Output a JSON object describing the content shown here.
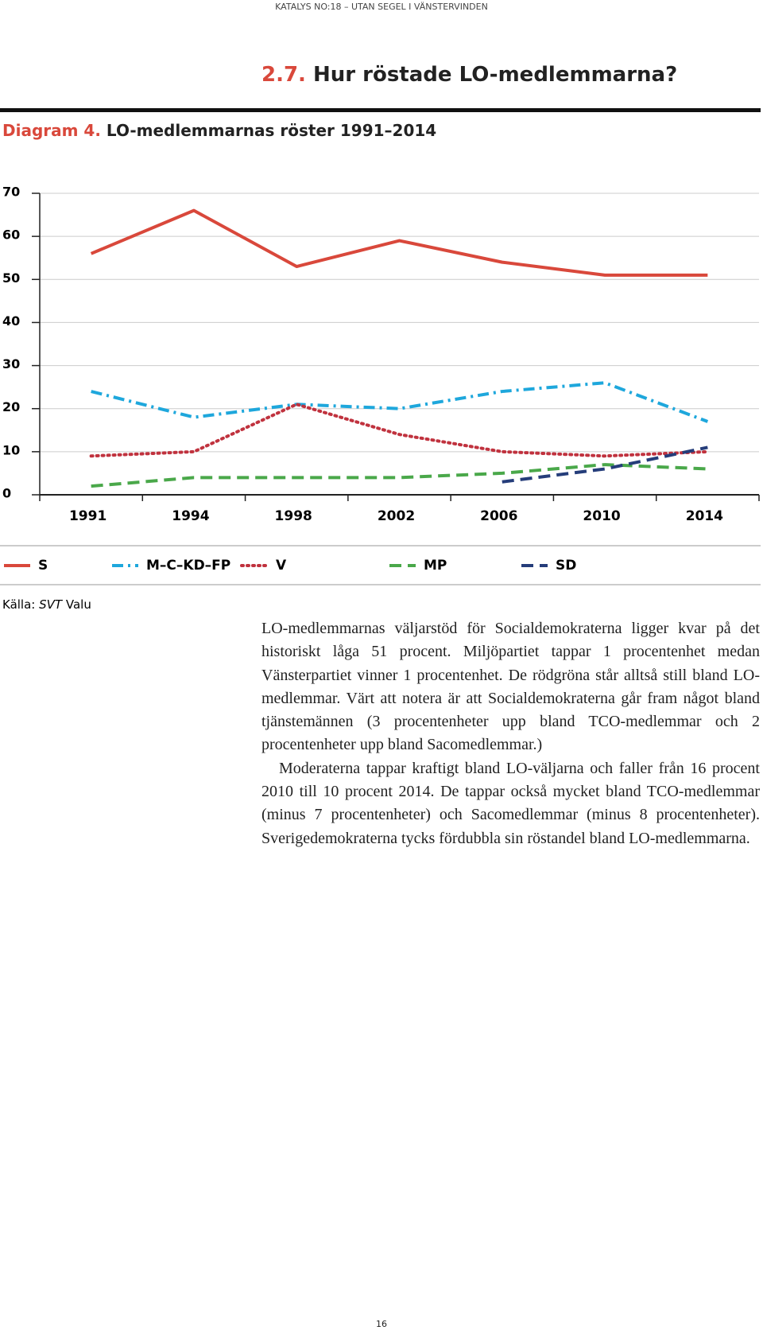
{
  "header": "KATALYS NO:18 – UTAN SEGEL I VÄNSTERVINDEN",
  "section": {
    "number": "2.7.",
    "title": "Hur röstade LO-medlemmarna?"
  },
  "chart_data": {
    "type": "line",
    "label": "Diagram 4.",
    "title": "LO-medlemmarnas röster 1991–2014",
    "categories": [
      "1991",
      "1994",
      "1998",
      "2002",
      "2006",
      "2010",
      "2014"
    ],
    "series": [
      {
        "name": "S",
        "color": "#d9483b",
        "dash": "solid",
        "values": [
          56,
          66,
          53,
          59,
          54,
          51,
          51
        ]
      },
      {
        "name": "M–C–KD–FP",
        "color": "#1ea7dc",
        "dash": "dashdot",
        "values": [
          24,
          18,
          21,
          20,
          24,
          26,
          17
        ]
      },
      {
        "name": "V",
        "color": "#c0323e",
        "dash": "dotted",
        "values": [
          9,
          10,
          21,
          14,
          10,
          9,
          10
        ]
      },
      {
        "name": "MP",
        "color": "#4aa84a",
        "dash": "dashed",
        "values": [
          2,
          4,
          4,
          4,
          5,
          7,
          6
        ]
      },
      {
        "name": "SD",
        "color": "#253d7a",
        "dash": "dashed",
        "values": [
          null,
          null,
          null,
          null,
          3,
          6,
          11
        ]
      }
    ],
    "ylim": [
      0,
      70
    ],
    "yticks": [
      0,
      10,
      20,
      30,
      40,
      50,
      60,
      70
    ],
    "grid": true,
    "legend": "bottom"
  },
  "source": {
    "prefix": "Källa:",
    "name": "SVT",
    "suffix": "Valu"
  },
  "body": [
    "LO-medlemmarnas väljarstöd för Socialdemokraterna ligger kvar på det historiskt låga 51 procent. Miljöpartiet tappar 1 procentenhet medan Vänsterpartiet vinner 1 procentenhet. De rödgröna står alltså still bland LO-medlemmar. Värt att notera är att Socialdemokraterna går fram något bland tjänstemännen (3 procentenheter upp bland TCO-medlemmar och 2 procentenheter upp bland Sacomedlemmar.)",
    "Moderaterna tappar kraftigt bland LO-väljarna och faller från 16 procent 2010 till 10 procent 2014. De tappar också mycket bland TCO-medlemmar (minus 7 procentenheter) och Sacomedlemmar (minus 8 procentenheter). Sverigedemokraterna tycks fördubbla sin röstandel bland LO-medlemmarna."
  ],
  "page_number": "16"
}
